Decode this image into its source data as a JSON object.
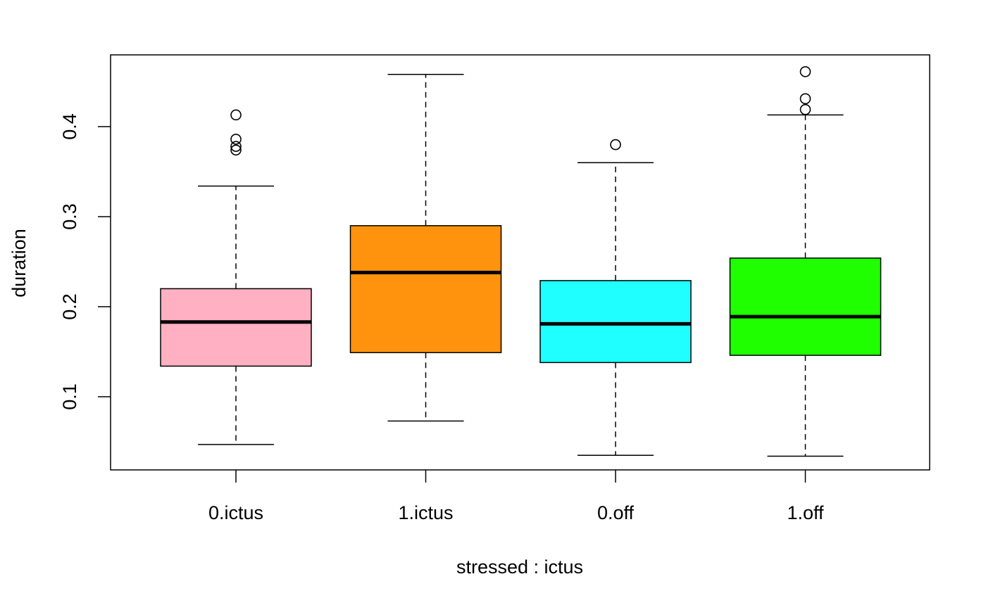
{
  "chart_data": {
    "type": "boxplot",
    "title": "",
    "xlabel": "stressed : ictus",
    "ylabel": "duration",
    "ylim": [
      0.02,
      0.48
    ],
    "yticks": [
      0.1,
      0.2,
      0.3,
      0.4
    ],
    "ytick_labels": [
      "0.1",
      "0.2",
      "0.3",
      "0.4"
    ],
    "grid": false,
    "legend": "none",
    "categories": [
      "0.ictus",
      "1.ictus",
      "0.off",
      "1.off"
    ],
    "boxes": [
      {
        "label": "0.ictus",
        "color": "#FFB0C2",
        "whisker_low": 0.047,
        "q1": 0.134,
        "median": 0.183,
        "q3": 0.22,
        "whisker_high": 0.334,
        "outliers": [
          0.374,
          0.378,
          0.386,
          0.413
        ]
      },
      {
        "label": "1.ictus",
        "color": "#FF930D",
        "whisker_low": 0.073,
        "q1": 0.149,
        "median": 0.238,
        "q3": 0.29,
        "whisker_high": 0.458,
        "outliers": []
      },
      {
        "label": "0.off",
        "color": "#1FFFFF",
        "whisker_low": 0.035,
        "q1": 0.138,
        "median": 0.181,
        "q3": 0.229,
        "whisker_high": 0.36,
        "outliers": [
          0.38
        ]
      },
      {
        "label": "1.off",
        "color": "#1FFF00",
        "whisker_low": 0.034,
        "q1": 0.146,
        "median": 0.189,
        "q3": 0.254,
        "whisker_high": 0.413,
        "outliers": [
          0.419,
          0.431,
          0.461
        ]
      }
    ]
  }
}
